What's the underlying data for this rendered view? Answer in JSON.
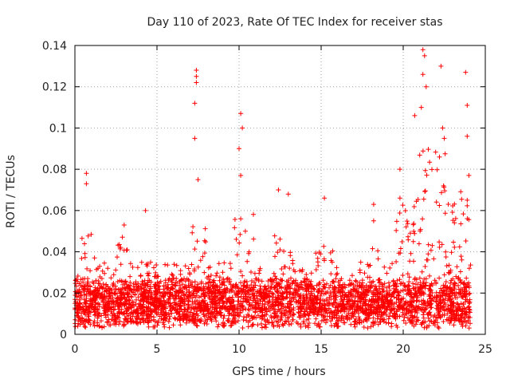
{
  "chart_data": {
    "type": "scatter",
    "title": "Day 110 of 2023, Rate Of TEC Index for receiver stas",
    "xlabel": "GPS time / hours",
    "ylabel": "ROTI / TECUs",
    "xlim": [
      0,
      25
    ],
    "ylim": [
      0,
      0.14
    ],
    "x_ticks": [
      0,
      5,
      10,
      15,
      20,
      25
    ],
    "x_tick_labels": [
      "0",
      "5",
      "10",
      "15",
      "20",
      "25"
    ],
    "y_ticks": [
      0,
      0.02,
      0.04,
      0.06,
      0.08,
      0.1,
      0.12,
      0.14
    ],
    "y_tick_labels": [
      "0",
      "0.02",
      "0.04",
      "0.06",
      "0.08",
      "0.1",
      "0.12",
      "0.14"
    ],
    "grid": true,
    "marker": "+",
    "color": "#ff0000",
    "series": [
      {
        "name": "ROTI",
        "x_range": [
          0,
          24.1
        ],
        "baseline_range": [
          0.005,
          0.025
        ],
        "notable_points": [
          {
            "x": 0.7,
            "y": 0.078
          },
          {
            "x": 0.7,
            "y": 0.073
          },
          {
            "x": 3.0,
            "y": 0.053
          },
          {
            "x": 4.3,
            "y": 0.06
          },
          {
            "x": 7.4,
            "y": 0.128
          },
          {
            "x": 7.4,
            "y": 0.125
          },
          {
            "x": 7.4,
            "y": 0.122
          },
          {
            "x": 7.3,
            "y": 0.112
          },
          {
            "x": 7.3,
            "y": 0.095
          },
          {
            "x": 7.5,
            "y": 0.075
          },
          {
            "x": 10.1,
            "y": 0.107
          },
          {
            "x": 10.2,
            "y": 0.1
          },
          {
            "x": 10.0,
            "y": 0.09
          },
          {
            "x": 10.1,
            "y": 0.077
          },
          {
            "x": 12.4,
            "y": 0.07
          },
          {
            "x": 13.0,
            "y": 0.068
          },
          {
            "x": 15.2,
            "y": 0.066
          },
          {
            "x": 18.2,
            "y": 0.063
          },
          {
            "x": 18.2,
            "y": 0.055
          },
          {
            "x": 19.8,
            "y": 0.08
          },
          {
            "x": 20.7,
            "y": 0.106
          },
          {
            "x": 21.2,
            "y": 0.138
          },
          {
            "x": 21.3,
            "y": 0.135
          },
          {
            "x": 21.2,
            "y": 0.126
          },
          {
            "x": 21.4,
            "y": 0.12
          },
          {
            "x": 21.1,
            "y": 0.11
          },
          {
            "x": 22.3,
            "y": 0.13
          },
          {
            "x": 22.4,
            "y": 0.1
          },
          {
            "x": 22.5,
            "y": 0.095
          },
          {
            "x": 23.8,
            "y": 0.127
          },
          {
            "x": 23.9,
            "y": 0.111
          },
          {
            "x": 23.9,
            "y": 0.096
          },
          {
            "x": 24.0,
            "y": 0.077
          },
          {
            "x": 23.9,
            "y": 0.065
          }
        ]
      }
    ]
  }
}
